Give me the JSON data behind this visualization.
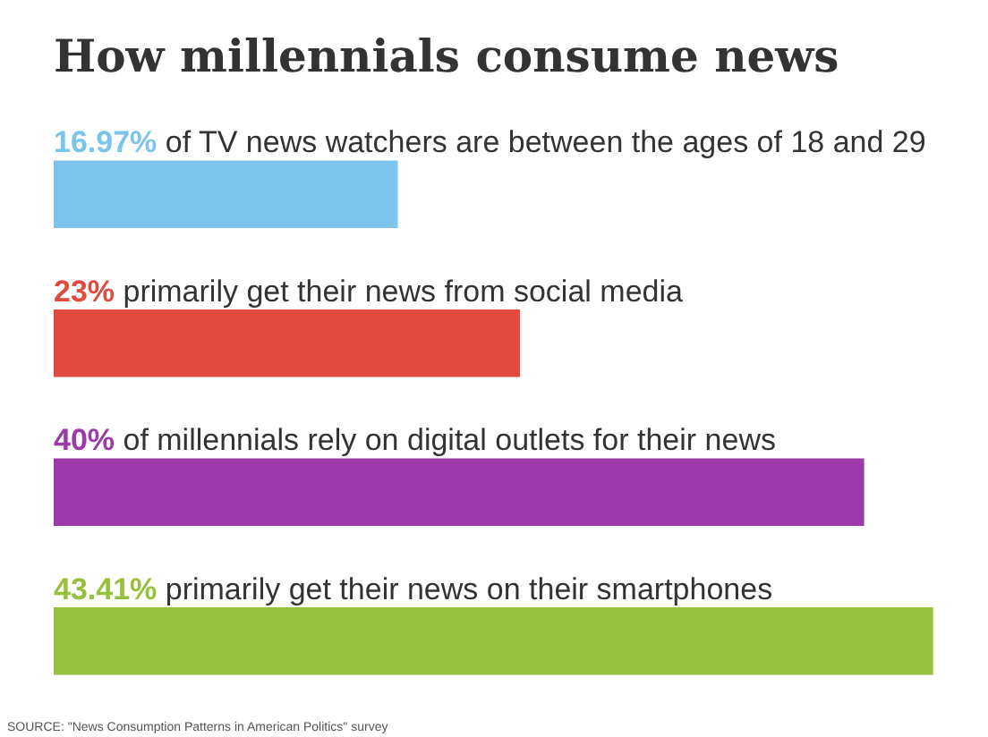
{
  "chart_data": {
    "type": "bar",
    "orientation": "horizontal",
    "title": "How millennials consume news",
    "categories": [
      "of TV news watchers are between the ages of 18 and 29",
      "primarily get their news from social media",
      "of millennials rely on digital outlets for their news",
      "primarily get their news on their smartphones"
    ],
    "values": [
      16.97,
      23,
      40,
      43.41
    ],
    "value_labels": [
      "16.97%",
      "23%",
      "40%",
      "43.41%"
    ],
    "colors": [
      "#7cc4ec",
      "#e04a3f",
      "#9b3aa8",
      "#97c03c"
    ],
    "tick_labels": false,
    "legend": false,
    "annotations": [
      "SOURCE: \"News Consumption Patterns in American Politics\" survey"
    ]
  }
}
